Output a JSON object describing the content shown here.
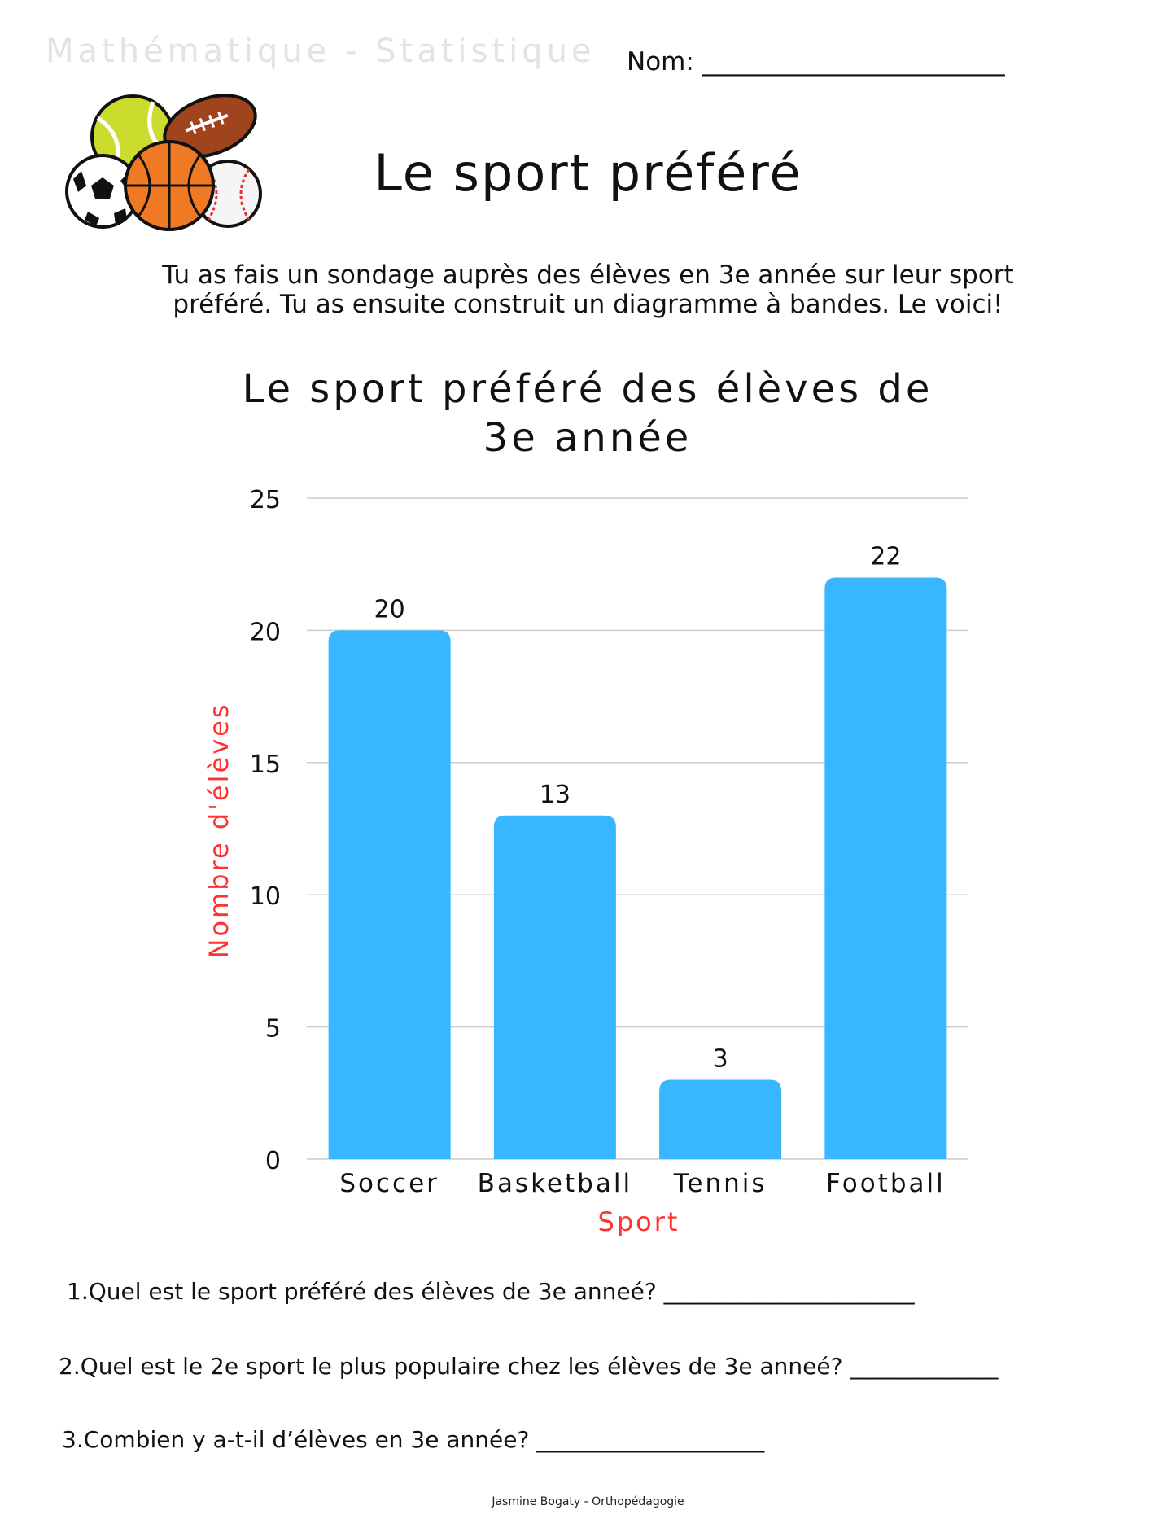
{
  "header": {
    "subject": "Mathématique - Statistique",
    "name_label": "Nom: ________________________"
  },
  "worksheet": {
    "title": "Le sport préféré",
    "intro": "Tu as fais un sondage auprès des élèves en 3e année sur leur sport préféré. Tu as ensuite construit un diagramme à bandes. Le voici!"
  },
  "colors": {
    "bar": "#38b6ff",
    "axis_label": "#ff3131",
    "grid": "#cccccc"
  },
  "chart_data": {
    "type": "bar",
    "title_lines": [
      "Le sport préféré des élèves de",
      "3e année"
    ],
    "categories": [
      "Soccer",
      "Basketball",
      "Tennis",
      "Football"
    ],
    "values": [
      20,
      13,
      3,
      22
    ],
    "data_labels": [
      "20",
      "13",
      "3",
      "22"
    ],
    "xlabel": "Sport",
    "ylabel": "Nombre d'élèves",
    "ylim": [
      0,
      25
    ],
    "yticks": [
      "0",
      "5",
      "10",
      "15",
      "20",
      "25"
    ],
    "grid": true
  },
  "questions": [
    "1.Quel est le sport préféré des élèves de 3e anneé? ______________________",
    "2.Quel est le 2e sport le plus populaire chez les élèves de 3e anneé?  _____________",
    "3.Combien y a-t-il d’élèves en 3e année? ____________________"
  ],
  "footer": "Jasmine Bogaty - Orthopédagogie",
  "illustration": {
    "icon": "sports-balls-icon"
  }
}
